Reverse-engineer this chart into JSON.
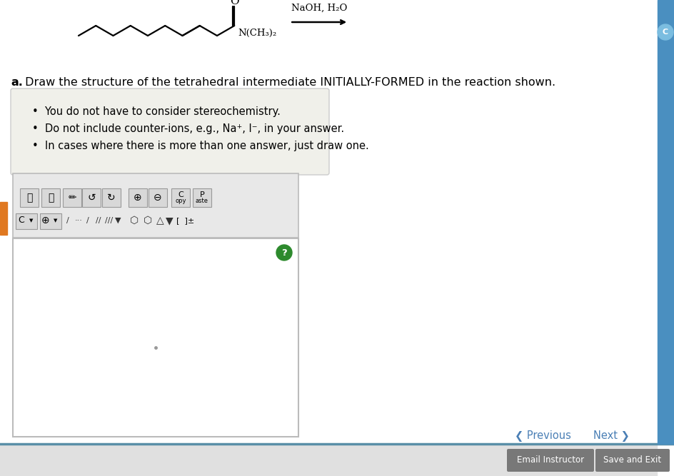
{
  "bg_color": "#ffffff",
  "bottom_bg": "#e0e0e0",
  "box_bg": "#f0f0ea",
  "box_border": "#cccccc",
  "toolbar_bg": "#e8e8e8",
  "toolbar_border": "#bbbbbb",
  "canvas_bg": "#ffffff",
  "right_bar_color": "#4a8fc0",
  "orange_tab_color": "#e07820",
  "prev_next_color": "#4a7fb5",
  "button_bg": "#808080",
  "button_text_color": "#ffffff",
  "bottom_bar_color": "#6699aa",
  "icon_bg": "#d8d8d8",
  "icon_border": "#999999",
  "reaction_label": "NaOH, H₂O",
  "amide_label": "N(CH₃)₂",
  "oxygen_label": "O",
  "title_bold": "a.",
  "title_text": " Draw the structure of the tetrahedral intermediate INITIALLY-FORMED in the reaction shown.",
  "bullet1": "You do not have to consider stereochemistry.",
  "bullet2": "Do not include counter-ions, e.g., Na⁺, I⁻, in your answer.",
  "bullet3": "In cases where there is more than one answer, just draw one.",
  "prev_text": "❮ Previous",
  "next_text": "Next ❯",
  "btn1_text": "Email Instructor",
  "btn2_text": "Save and Exit"
}
